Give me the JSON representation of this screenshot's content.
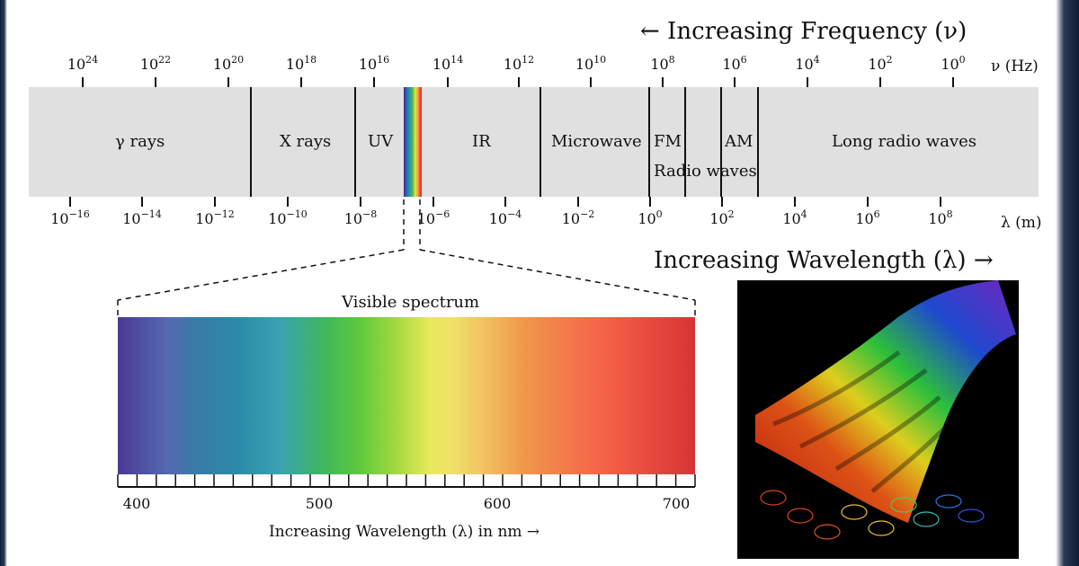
{
  "frequency_heading": "← Increasing Frequency (ν)",
  "frequency_unit": "ν (Hz)",
  "frequency_exponents": [
    "24",
    "22",
    "20",
    "18",
    "16",
    "14",
    "12",
    "10",
    "8",
    "6",
    "4",
    "2",
    "0"
  ],
  "wavelength_heading": "Increasing Wavelength (λ) →",
  "wavelength_unit": "λ (m)",
  "wavelength_exponents": [
    "−16",
    "−14",
    "−12",
    "−10",
    "−8",
    "−6",
    "−4",
    "−2",
    "0",
    "2",
    "4",
    "6",
    "8"
  ],
  "tick_base": "10",
  "regions": {
    "gamma": "γ rays",
    "xray": "X rays",
    "uv": "UV",
    "ir": "IR",
    "microwave": "Microwave",
    "fm": "FM",
    "am": "AM",
    "radio_waves": "Radio waves",
    "long_radio": "Long radio waves"
  },
  "visible": {
    "title": "Visible spectrum",
    "scale_labels": [
      "400",
      "500",
      "600",
      "700"
    ],
    "axis_label": "Increasing Wavelength (λ) in nm →"
  },
  "colors": {
    "band": "#e0e0e0",
    "line": "#111111"
  }
}
